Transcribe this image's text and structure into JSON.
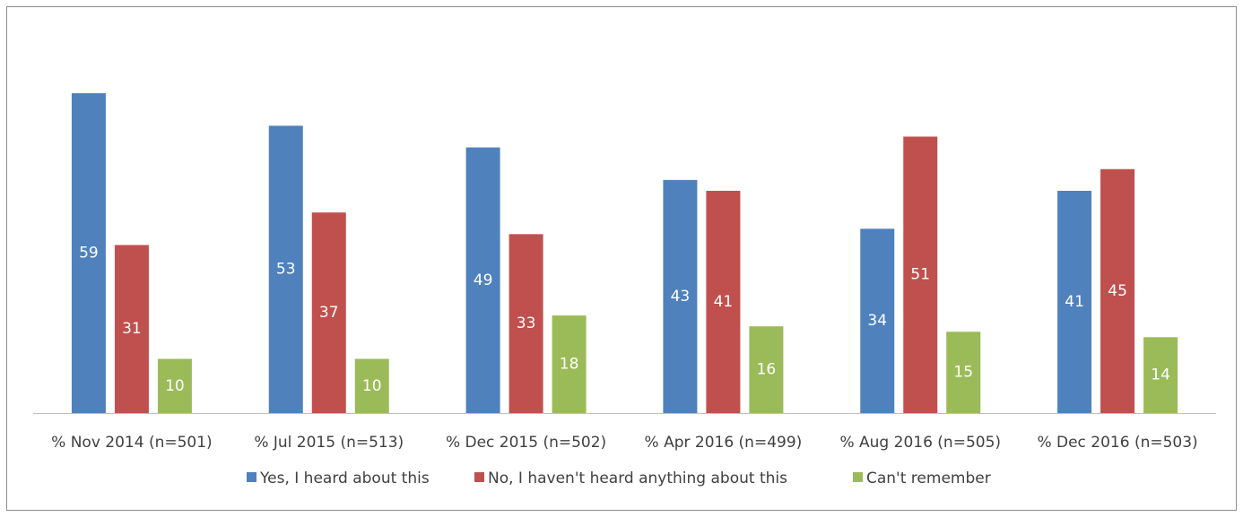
{
  "chart_data": {
    "type": "bar",
    "title": "",
    "xlabel": "",
    "ylabel": "",
    "ylim": [
      0,
      60
    ],
    "grid": false,
    "legend_position": "bottom",
    "categories": [
      "% Nov 2014 (n=501)",
      "% Jul 2015 (n=513)",
      "% Dec 2015 (n=502)",
      "% Apr 2016 (n=499)",
      "% Aug 2016 (n=505)",
      "% Dec 2016 (n=503)"
    ],
    "series": [
      {
        "name": "Yes, I heard about this",
        "color": "#4f81bd",
        "values": [
          59,
          53,
          49,
          43,
          34,
          41
        ]
      },
      {
        "name": "No, I haven't heard anything about this",
        "color": "#c0504d",
        "values": [
          31,
          37,
          33,
          41,
          51,
          45
        ]
      },
      {
        "name": "Can't remember",
        "color": "#9bbb59",
        "values": [
          10,
          10,
          18,
          16,
          15,
          14
        ]
      }
    ]
  }
}
